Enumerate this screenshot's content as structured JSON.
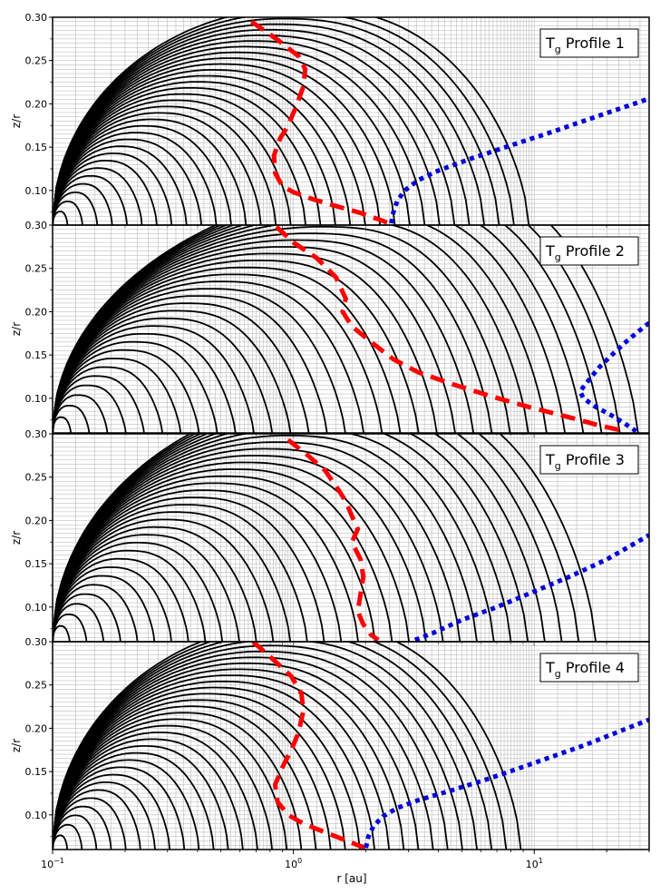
{
  "chart_data": {
    "type": "line",
    "shared_x": {
      "label": "r [au]",
      "scale": "log",
      "lim": [
        0.1,
        30
      ],
      "ticks": [
        {
          "value": 0.1,
          "base": "10",
          "exp": "−1"
        },
        {
          "value": 1,
          "base": "10",
          "exp": "0"
        },
        {
          "value": 10,
          "base": "10",
          "exp": "1"
        }
      ]
    },
    "colors": {
      "contour": "#000000",
      "red_curve": "#ff0000",
      "blue_curve": "#0000dd",
      "grid": "#b0b0b0"
    },
    "panels": [
      {
        "legend": {
          "prefix": "T",
          "subscript": "g",
          "suffix": " Profile 1"
        },
        "ylabel": "z/r",
        "ylim": [
          0.06,
          0.3
        ],
        "yticks": [
          "0.10",
          "0.15",
          "0.20",
          "0.25",
          "0.30"
        ],
        "contours": {
          "count": 32,
          "r_inner": 0.1,
          "r_peak": 0.95,
          "r_outer": 9.5,
          "apex": 0.251,
          "peak_shift": 1.1,
          "sharp": 0.5
        },
        "red_dashed": {
          "r": [
            0.67,
            0.85,
            1.05,
            1.12,
            1.1,
            1.02,
            0.95,
            0.88,
            0.83,
            0.84,
            0.9,
            1.0,
            1.2,
            1.5,
            1.9,
            2.3,
            2.5
          ],
          "z": [
            0.295,
            0.275,
            0.255,
            0.24,
            0.22,
            0.195,
            0.175,
            0.16,
            0.14,
            0.12,
            0.105,
            0.098,
            0.09,
            0.082,
            0.074,
            0.066,
            0.062
          ]
        },
        "blue_dotted": {
          "r": [
            2.55,
            2.6,
            2.7,
            2.9,
            3.3,
            4.0,
            5.5,
            8.0,
            12.0,
            18.0,
            30.0
          ],
          "z": [
            0.062,
            0.075,
            0.088,
            0.1,
            0.112,
            0.123,
            0.137,
            0.152,
            0.168,
            0.185,
            0.206
          ]
        }
      },
      {
        "legend": {
          "prefix": "T",
          "subscript": "g",
          "suffix": " Profile 2"
        },
        "ylabel": "z/r",
        "ylim": [
          0.06,
          0.3
        ],
        "yticks": [
          "0.10",
          "0.15",
          "0.20",
          "0.25",
          "0.30"
        ],
        "contours": {
          "count": 32,
          "r_inner": 0.1,
          "r_peak": 1.0,
          "r_outer": 27.0,
          "apex": 0.29,
          "peak_shift": 3.5,
          "sharp": 0.9
        },
        "red_dashed": {
          "r": [
            0.85,
            1.0,
            1.25,
            1.5,
            1.65,
            1.6,
            1.75,
            2.1,
            2.6,
            3.3,
            4.5,
            6.5,
            9.5,
            14.0,
            19.0,
            24.0
          ],
          "z": [
            0.298,
            0.28,
            0.262,
            0.24,
            0.215,
            0.2,
            0.183,
            0.165,
            0.145,
            0.13,
            0.117,
            0.103,
            0.09,
            0.078,
            0.068,
            0.062
          ]
        },
        "blue_dotted": {
          "r": [
            30.0,
            27.0,
            24.0,
            21.0,
            18.5,
            16.5,
            15.5,
            16.0,
            18.0,
            21.0,
            24.0,
            26.5
          ],
          "z": [
            0.187,
            0.177,
            0.165,
            0.15,
            0.135,
            0.118,
            0.108,
            0.1,
            0.09,
            0.08,
            0.07,
            0.062
          ]
        }
      },
      {
        "legend": {
          "prefix": "T",
          "subscript": "g",
          "suffix": " Profile 3"
        },
        "ylabel": "z/r",
        "ylim": [
          0.06,
          0.3
        ],
        "yticks": [
          "0.10",
          "0.15",
          "0.20",
          "0.25",
          "0.30"
        ],
        "contours": {
          "count": 32,
          "r_inner": 0.1,
          "r_peak": 1.0,
          "r_outer": 18.0,
          "apex": 0.29,
          "peak_shift": 2.0,
          "sharp": 0.7
        },
        "red_dashed": {
          "r": [
            0.95,
            1.15,
            1.35,
            1.5,
            1.65,
            1.75,
            1.85,
            1.75,
            1.9,
            1.95,
            1.9,
            1.85,
            1.95,
            2.1,
            2.25
          ],
          "z": [
            0.293,
            0.275,
            0.258,
            0.24,
            0.222,
            0.205,
            0.19,
            0.175,
            0.155,
            0.135,
            0.115,
            0.095,
            0.08,
            0.068,
            0.062
          ]
        },
        "blue_dotted": {
          "r": [
            3.2,
            3.8,
            5.0,
            7.0,
            10.0,
            14.0,
            20.0,
            30.0
          ],
          "z": [
            0.062,
            0.07,
            0.085,
            0.1,
            0.118,
            0.135,
            0.155,
            0.183
          ]
        }
      },
      {
        "legend": {
          "prefix": "T",
          "subscript": "g",
          "suffix": " Profile 4"
        },
        "ylabel": "z/r",
        "ylim": [
          0.06,
          0.3
        ],
        "yticks": [
          "0.10",
          "0.15",
          "0.20",
          "0.25",
          "0.30"
        ],
        "contours": {
          "count": 32,
          "r_inner": 0.1,
          "r_peak": 0.97,
          "r_outer": 8.8,
          "apex": 0.262,
          "peak_shift": 1.1,
          "sharp": 0.5
        },
        "red_dashed": {
          "r": [
            0.68,
            0.82,
            0.98,
            1.08,
            1.1,
            1.05,
            0.98,
            0.9,
            0.84,
            0.86,
            0.95,
            1.1,
            1.35,
            1.6,
            1.85,
            2.0
          ],
          "z": [
            0.3,
            0.28,
            0.26,
            0.24,
            0.22,
            0.195,
            0.175,
            0.155,
            0.135,
            0.115,
            0.1,
            0.09,
            0.08,
            0.072,
            0.065,
            0.062
          ]
        },
        "blue_dotted": {
          "r": [
            2.0,
            2.05,
            2.15,
            2.35,
            2.7,
            3.3,
            4.5,
            6.5,
            10.0,
            16.0,
            30.0
          ],
          "z": [
            0.062,
            0.075,
            0.087,
            0.098,
            0.108,
            0.117,
            0.128,
            0.142,
            0.16,
            0.18,
            0.21
          ]
        }
      }
    ]
  }
}
